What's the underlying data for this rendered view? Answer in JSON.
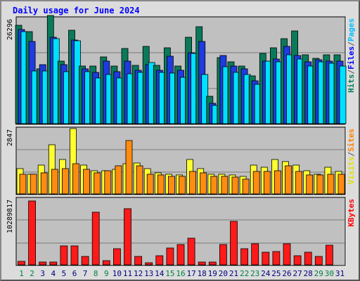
{
  "chart_data": {
    "title": "Daily usage for June 2024",
    "type": "bar",
    "days": [
      "1",
      "2",
      "3",
      "4",
      "5",
      "6",
      "7",
      "8",
      "9",
      "10",
      "11",
      "12",
      "13",
      "14",
      "15",
      "16",
      "17",
      "18",
      "19",
      "20",
      "21",
      "22",
      "23",
      "24",
      "25",
      "26",
      "27",
      "28",
      "29",
      "30",
      "31"
    ],
    "weekend_days": [
      "1",
      "2",
      "8",
      "9",
      "15",
      "16",
      "22",
      "23",
      "29",
      "30"
    ],
    "weekend_color": "#008040",
    "weekday_color": "#000080",
    "panels": [
      {
        "id": "top",
        "max_label": "26296",
        "ymax": 26296,
        "legend": [
          {
            "text": "Hits",
            "color": "#00805c"
          },
          {
            "text": "Files",
            "color": "#0000ff"
          },
          {
            "text": "Pages",
            "color": "#00c0ff"
          }
        ],
        "series": [
          {
            "name": "Hits",
            "color": "#0a7a5a",
            "values": [
              25100,
              23500,
              14000,
              27500,
              16000,
              23800,
              14600,
              14600,
              17000,
              14600,
              19200,
              14800,
              19600,
              14800,
              19400,
              14600,
              22000,
              24600,
              7000,
              16800,
              15800,
              14600,
              12200,
              17800,
              19300,
              21600,
              23600,
              17600,
              16600,
              17600,
              17600
            ]
          },
          {
            "name": "Files",
            "color": "#1e3be0",
            "values": [
              24000,
              20900,
              15000,
              22000,
              15000,
              21200,
              14000,
              13000,
              15900,
              13300,
              16000,
              13600,
              15000,
              13600,
              17200,
              13600,
              18000,
              21000,
              5200,
              17400,
              14700,
              13900,
              11000,
              16000,
              16400,
              19700,
              17400,
              15800,
              16300,
              15900,
              15900
            ]
          },
          {
            "name": "Pages",
            "color": "#00e0ff",
            "values": [
              23400,
              13500,
              13400,
              21700,
              13300,
              21100,
              13200,
              11600,
              12500,
              11600,
              12700,
              13000,
              15600,
              13000,
              12800,
              11800,
              17800,
              12600,
              4600,
              14500,
              13100,
              12500,
              10000,
              16000,
              15800,
              17600,
              16400,
              14600,
              15700,
              15400,
              14600
            ]
          }
        ]
      },
      {
        "id": "middle",
        "max_label": "2847",
        "ymax": 2847,
        "legend": [
          {
            "text": "Visits",
            "color": "#e0e000"
          },
          {
            "text": "/",
            "color": "#555555"
          },
          {
            "text": "Sites",
            "color": "#ff8000"
          }
        ],
        "series": [
          {
            "name": "Visits",
            "color": "#ffff30",
            "values": [
              1150,
              900,
              1300,
              2200,
              1550,
              2950,
              1300,
              1050,
              1050,
              1100,
              1350,
              1400,
              1150,
              950,
              900,
              850,
              1550,
              1150,
              900,
              900,
              850,
              800,
              1300,
              1200,
              1550,
              1450,
              1300,
              1050,
              900,
              1200,
              1000
            ]
          },
          {
            "name": "Sites",
            "color": "#ff8c10",
            "values": [
              900,
              900,
              950,
              1100,
              1150,
              1350,
              1100,
              950,
              1050,
              1250,
              2400,
              1250,
              900,
              850,
              800,
              800,
              1000,
              950,
              800,
              800,
              750,
              650,
              1000,
              1000,
              1050,
              1250,
              1000,
              850,
              850,
              900,
              900
            ]
          }
        ]
      },
      {
        "id": "bottom",
        "max_label": "10289817",
        "ymax": 10289817,
        "legend": [
          {
            "text": "KBytes",
            "color": "#ff0000"
          }
        ],
        "series": [
          {
            "name": "KBytes",
            "color": "#ff1a1a",
            "values": [
              520000,
              10300000,
              400000,
              470000,
              3050000,
              3050000,
              1400000,
              8450000,
              700000,
              2650000,
              9000000,
              1400000,
              320000,
              1500000,
              2750000,
              3300000,
              4300000,
              500000,
              450000,
              3250000,
              7000000,
              2600000,
              3400000,
              2000000,
              2200000,
              3400000,
              1500000,
              2000000,
              1400000,
              3200000,
              0
            ]
          }
        ]
      }
    ]
  }
}
